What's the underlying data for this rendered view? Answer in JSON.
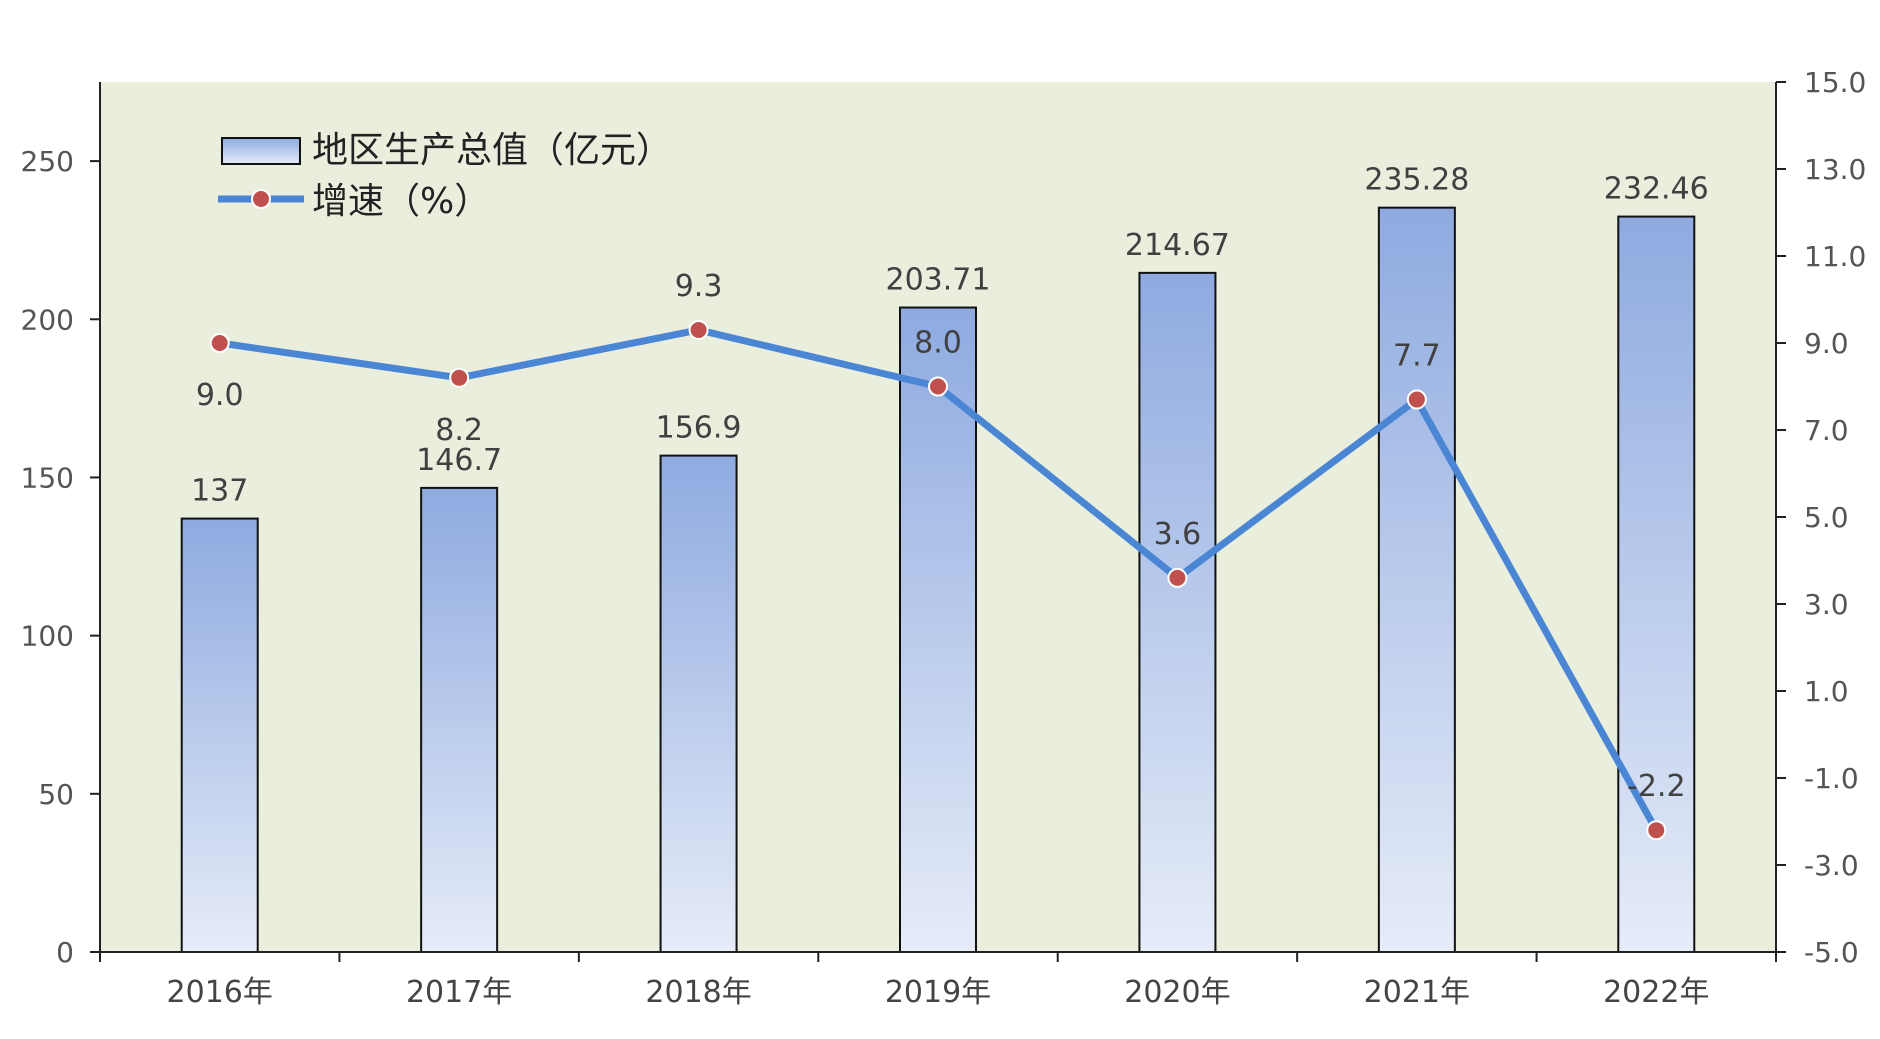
{
  "chart_data": {
    "type": "bar+line",
    "categories": [
      "2016年",
      "2017年",
      "2018年",
      "2019年",
      "2020年",
      "2021年",
      "2022年"
    ],
    "series": [
      {
        "name": "地区生产总值（亿元）",
        "type": "bar",
        "axis": "left",
        "values": [
          137,
          146.7,
          156.9,
          203.71,
          214.67,
          235.28,
          232.46
        ],
        "labels": [
          "137",
          "146.7",
          "156.9",
          "203.71",
          "214.67",
          "235.28",
          "232.46"
        ]
      },
      {
        "name": "增速（%）",
        "type": "line",
        "axis": "right",
        "values": [
          9.0,
          8.2,
          9.3,
          8.0,
          3.6,
          7.7,
          -2.2
        ],
        "labels": [
          "9.0",
          "8.2",
          "9.3",
          "8.0",
          "3.6",
          "7.7",
          "-2.2"
        ]
      }
    ],
    "y_left": {
      "min": 0,
      "max": 275,
      "ticks": [
        0,
        50,
        100,
        150,
        200,
        250
      ]
    },
    "y_right": {
      "min": -5,
      "max": 15,
      "ticks": [
        "-5.0",
        "-3.0",
        "-1.0",
        "1.0",
        "3.0",
        "5.0",
        "7.0",
        "9.0",
        "11.0",
        "13.0",
        "15.0"
      ]
    },
    "grid": false,
    "legend_position": "top-left",
    "colors": {
      "plot_background": "#eaeedd",
      "bar_top": "#8eaae0",
      "bar_bottom": "#e6ecf8",
      "line": "#4a86d4",
      "marker": "#c0504d"
    }
  }
}
